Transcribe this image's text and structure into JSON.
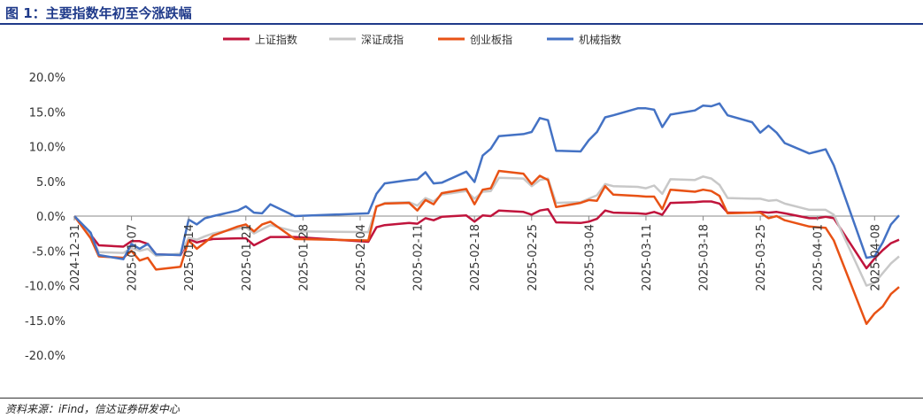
{
  "title": "图 1：主要指数年初至今涨跌幅",
  "source": "资料来源：iFind，信达证券研发中心",
  "chart_data": {
    "type": "line",
    "title": "图 1：主要指数年初至今涨跌幅",
    "xlabel": "",
    "ylabel": "",
    "ylim": [
      -20,
      20
    ],
    "yticks": [
      -20,
      -15,
      -10,
      -5,
      0,
      5,
      10,
      15,
      20
    ],
    "ytick_labels": [
      "-20.0%",
      "-15.0%",
      "-10.0%",
      "-5.0%",
      "0.0%",
      "5.0%",
      "10.0%",
      "15.0%",
      "20.0%"
    ],
    "x_start": "2024-12-31",
    "x_end": "2025-04-11",
    "xtick_labels": [
      "2024-12-31",
      "2025-01-07",
      "2025-01-14",
      "2025-01-21",
      "2025-01-28",
      "2025-02-04",
      "2025-02-11",
      "2025-02-18",
      "2025-02-25",
      "2025-03-04",
      "2025-03-11",
      "2025-03-18",
      "2025-03-25",
      "2025-04-01",
      "2025-04-08"
    ],
    "legend_position": "top",
    "grid": false,
    "series": [
      {
        "name": "上证指数",
        "color": "#c0143c",
        "points": [
          [
            "2024-12-31",
            0
          ],
          [
            "2025-01-02",
            -2.7
          ],
          [
            "2025-01-03",
            -4.2
          ],
          [
            "2025-01-06",
            -4.4
          ],
          [
            "2025-01-07",
            -3.6
          ],
          [
            "2025-01-08",
            -3.6
          ],
          [
            "2025-01-09",
            -4.0
          ],
          [
            "2025-01-10",
            -5.5
          ],
          [
            "2025-01-13",
            -5.6
          ],
          [
            "2025-01-14",
            -3.3
          ],
          [
            "2025-01-15",
            -3.8
          ],
          [
            "2025-01-16",
            -3.5
          ],
          [
            "2025-01-17",
            -3.3
          ],
          [
            "2025-01-20",
            -3.2
          ],
          [
            "2025-01-21",
            -3.2
          ],
          [
            "2025-01-22",
            -4.2
          ],
          [
            "2025-01-23",
            -3.6
          ],
          [
            "2025-01-24",
            -3.0
          ],
          [
            "2025-01-27",
            -3.0
          ],
          [
            "2025-02-05",
            -3.7
          ],
          [
            "2025-02-06",
            -1.6
          ],
          [
            "2025-02-07",
            -1.3
          ],
          [
            "2025-02-10",
            -1.0
          ],
          [
            "2025-02-11",
            -1.1
          ],
          [
            "2025-02-12",
            -0.3
          ],
          [
            "2025-02-13",
            -0.6
          ],
          [
            "2025-02-14",
            -0.1
          ],
          [
            "2025-02-17",
            0.1
          ],
          [
            "2025-02-18",
            -0.8
          ],
          [
            "2025-02-19",
            0.1
          ],
          [
            "2025-02-20",
            0.0
          ],
          [
            "2025-02-21",
            0.8
          ],
          [
            "2025-02-24",
            0.6
          ],
          [
            "2025-02-25",
            0.2
          ],
          [
            "2025-02-26",
            0.8
          ],
          [
            "2025-02-27",
            1.0
          ],
          [
            "2025-02-28",
            -0.9
          ],
          [
            "2025-03-03",
            -1.0
          ],
          [
            "2025-03-04",
            -0.8
          ],
          [
            "2025-03-05",
            -0.4
          ],
          [
            "2025-03-06",
            0.8
          ],
          [
            "2025-03-07",
            0.5
          ],
          [
            "2025-03-10",
            0.4
          ],
          [
            "2025-03-11",
            0.3
          ],
          [
            "2025-03-12",
            0.6
          ],
          [
            "2025-03-13",
            0.2
          ],
          [
            "2025-03-14",
            1.9
          ],
          [
            "2025-03-17",
            2.0
          ],
          [
            "2025-03-18",
            2.1
          ],
          [
            "2025-03-19",
            2.1
          ],
          [
            "2025-03-20",
            1.8
          ],
          [
            "2025-03-21",
            0.5
          ],
          [
            "2025-03-24",
            0.5
          ],
          [
            "2025-03-25",
            0.6
          ],
          [
            "2025-03-26",
            0.5
          ],
          [
            "2025-03-27",
            0.6
          ],
          [
            "2025-03-28",
            0.4
          ],
          [
            "2025-03-31",
            -0.3
          ],
          [
            "2025-04-01",
            -0.3
          ],
          [
            "2025-04-02",
            -0.1
          ],
          [
            "2025-04-03",
            -0.3
          ],
          [
            "2025-04-07",
            -7.5
          ],
          [
            "2025-04-08",
            -6.1
          ],
          [
            "2025-04-09",
            -4.9
          ],
          [
            "2025-04-10",
            -3.9
          ],
          [
            "2025-04-11",
            -3.4
          ]
        ]
      },
      {
        "name": "深证成指",
        "color": "#c8c8c8",
        "points": [
          [
            "2024-12-31",
            0
          ],
          [
            "2025-01-02",
            -2.9
          ],
          [
            "2025-01-03",
            -5.2
          ],
          [
            "2025-01-06",
            -5.3
          ],
          [
            "2025-01-07",
            -4.6
          ],
          [
            "2025-01-08",
            -5.0
          ],
          [
            "2025-01-09",
            -4.7
          ],
          [
            "2025-01-10",
            -5.7
          ],
          [
            "2025-01-13",
            -5.4
          ],
          [
            "2025-01-14",
            -3.1
          ],
          [
            "2025-01-15",
            -3.4
          ],
          [
            "2025-01-16",
            -2.9
          ],
          [
            "2025-01-17",
            -2.5
          ],
          [
            "2025-01-20",
            -1.8
          ],
          [
            "2025-01-21",
            -1.6
          ],
          [
            "2025-01-22",
            -2.5
          ],
          [
            "2025-01-23",
            -1.9
          ],
          [
            "2025-01-24",
            -1.3
          ],
          [
            "2025-01-27",
            -2.2
          ],
          [
            "2025-02-05",
            -2.3
          ],
          [
            "2025-02-06",
            1.3
          ],
          [
            "2025-02-07",
            1.9
          ],
          [
            "2025-02-10",
            2.0
          ],
          [
            "2025-02-11",
            1.5
          ],
          [
            "2025-02-12",
            2.6
          ],
          [
            "2025-02-13",
            2.1
          ],
          [
            "2025-02-14",
            3.1
          ],
          [
            "2025-02-17",
            3.6
          ],
          [
            "2025-02-18",
            2.5
          ],
          [
            "2025-02-19",
            3.5
          ],
          [
            "2025-02-20",
            3.6
          ],
          [
            "2025-02-21",
            5.5
          ],
          [
            "2025-02-24",
            5.4
          ],
          [
            "2025-02-25",
            4.3
          ],
          [
            "2025-02-26",
            5.2
          ],
          [
            "2025-02-27",
            5.4
          ],
          [
            "2025-02-28",
            1.9
          ],
          [
            "2025-03-03",
            2.0
          ],
          [
            "2025-03-04",
            2.5
          ],
          [
            "2025-03-05",
            3.0
          ],
          [
            "2025-03-06",
            4.6
          ],
          [
            "2025-03-07",
            4.3
          ],
          [
            "2025-03-10",
            4.2
          ],
          [
            "2025-03-11",
            4.0
          ],
          [
            "2025-03-12",
            4.4
          ],
          [
            "2025-03-13",
            3.2
          ],
          [
            "2025-03-14",
            5.3
          ],
          [
            "2025-03-17",
            5.2
          ],
          [
            "2025-03-18",
            5.7
          ],
          [
            "2025-03-19",
            5.4
          ],
          [
            "2025-03-20",
            4.5
          ],
          [
            "2025-03-21",
            2.6
          ],
          [
            "2025-03-24",
            2.5
          ],
          [
            "2025-03-25",
            2.5
          ],
          [
            "2025-03-26",
            2.2
          ],
          [
            "2025-03-27",
            2.3
          ],
          [
            "2025-03-28",
            1.8
          ],
          [
            "2025-03-31",
            0.9
          ],
          [
            "2025-04-01",
            0.9
          ],
          [
            "2025-04-02",
            0.9
          ],
          [
            "2025-04-03",
            0.2
          ],
          [
            "2025-04-07",
            -10.0
          ],
          [
            "2025-04-08",
            -9.6
          ],
          [
            "2025-04-09",
            -8.2
          ],
          [
            "2025-04-10",
            -6.8
          ],
          [
            "2025-04-11",
            -5.8
          ]
        ]
      },
      {
        "name": "创业板指",
        "color": "#e85215",
        "points": [
          [
            "2024-12-31",
            0
          ],
          [
            "2025-01-02",
            -3.2
          ],
          [
            "2025-01-03",
            -5.8
          ],
          [
            "2025-01-06",
            -6.0
          ],
          [
            "2025-01-07",
            -5.0
          ],
          [
            "2025-01-08",
            -6.4
          ],
          [
            "2025-01-09",
            -6.0
          ],
          [
            "2025-01-10",
            -7.7
          ],
          [
            "2025-01-13",
            -7.3
          ],
          [
            "2025-01-14",
            -3.5
          ],
          [
            "2025-01-15",
            -4.7
          ],
          [
            "2025-01-16",
            -3.8
          ],
          [
            "2025-01-17",
            -2.8
          ],
          [
            "2025-01-20",
            -1.5
          ],
          [
            "2025-01-21",
            -1.2
          ],
          [
            "2025-01-22",
            -2.2
          ],
          [
            "2025-01-23",
            -1.2
          ],
          [
            "2025-01-24",
            -0.8
          ],
          [
            "2025-01-27",
            -3.3
          ],
          [
            "2025-02-05",
            -3.5
          ],
          [
            "2025-02-06",
            1.4
          ],
          [
            "2025-02-07",
            1.8
          ],
          [
            "2025-02-10",
            1.9
          ],
          [
            "2025-02-11",
            0.8
          ],
          [
            "2025-02-12",
            2.3
          ],
          [
            "2025-02-13",
            1.7
          ],
          [
            "2025-02-14",
            3.3
          ],
          [
            "2025-02-17",
            3.9
          ],
          [
            "2025-02-18",
            1.7
          ],
          [
            "2025-02-19",
            3.8
          ],
          [
            "2025-02-20",
            4.0
          ],
          [
            "2025-02-21",
            6.5
          ],
          [
            "2025-02-24",
            6.1
          ],
          [
            "2025-02-25",
            4.6
          ],
          [
            "2025-02-26",
            5.8
          ],
          [
            "2025-02-27",
            5.2
          ],
          [
            "2025-02-28",
            1.3
          ],
          [
            "2025-03-03",
            1.9
          ],
          [
            "2025-03-04",
            2.3
          ],
          [
            "2025-03-05",
            2.2
          ],
          [
            "2025-03-06",
            4.3
          ],
          [
            "2025-03-07",
            3.1
          ],
          [
            "2025-03-10",
            2.9
          ],
          [
            "2025-03-11",
            2.8
          ],
          [
            "2025-03-12",
            2.8
          ],
          [
            "2025-03-13",
            1.0
          ],
          [
            "2025-03-14",
            3.8
          ],
          [
            "2025-03-17",
            3.5
          ],
          [
            "2025-03-18",
            3.8
          ],
          [
            "2025-03-19",
            3.6
          ],
          [
            "2025-03-20",
            2.9
          ],
          [
            "2025-03-21",
            0.4
          ],
          [
            "2025-03-24",
            0.5
          ],
          [
            "2025-03-25",
            0.5
          ],
          [
            "2025-03-26",
            -0.3
          ],
          [
            "2025-03-27",
            0.0
          ],
          [
            "2025-03-28",
            -0.6
          ],
          [
            "2025-03-31",
            -1.5
          ],
          [
            "2025-04-01",
            -1.6
          ],
          [
            "2025-04-02",
            -1.7
          ],
          [
            "2025-04-03",
            -3.5
          ],
          [
            "2025-04-07",
            -15.5
          ],
          [
            "2025-04-08",
            -14.0
          ],
          [
            "2025-04-09",
            -13.0
          ],
          [
            "2025-04-10",
            -11.2
          ],
          [
            "2025-04-11",
            -10.2
          ]
        ]
      },
      {
        "name": "机械指数",
        "color": "#4472c4",
        "points": [
          [
            "2024-12-31",
            0
          ],
          [
            "2025-01-02",
            -2.4
          ],
          [
            "2025-01-03",
            -5.6
          ],
          [
            "2025-01-06",
            -6.2
          ],
          [
            "2025-01-07",
            -4.0
          ],
          [
            "2025-01-08",
            -4.7
          ],
          [
            "2025-01-09",
            -4.0
          ],
          [
            "2025-01-10",
            -5.5
          ],
          [
            "2025-01-13",
            -5.6
          ],
          [
            "2025-01-14",
            -0.5
          ],
          [
            "2025-01-15",
            -1.2
          ],
          [
            "2025-01-16",
            -0.3
          ],
          [
            "2025-01-17",
            0.0
          ],
          [
            "2025-01-20",
            0.8
          ],
          [
            "2025-01-21",
            1.4
          ],
          [
            "2025-01-22",
            0.5
          ],
          [
            "2025-01-23",
            0.4
          ],
          [
            "2025-01-24",
            1.7
          ],
          [
            "2025-01-27",
            0.0
          ],
          [
            "2025-02-05",
            0.4
          ],
          [
            "2025-02-06",
            3.2
          ],
          [
            "2025-02-07",
            4.7
          ],
          [
            "2025-02-10",
            5.2
          ],
          [
            "2025-02-11",
            5.3
          ],
          [
            "2025-02-12",
            6.3
          ],
          [
            "2025-02-13",
            4.7
          ],
          [
            "2025-02-14",
            4.8
          ],
          [
            "2025-02-17",
            6.4
          ],
          [
            "2025-02-18",
            4.9
          ],
          [
            "2025-02-19",
            8.7
          ],
          [
            "2025-02-20",
            9.7
          ],
          [
            "2025-02-21",
            11.5
          ],
          [
            "2025-02-24",
            11.8
          ],
          [
            "2025-02-25",
            12.1
          ],
          [
            "2025-02-26",
            14.1
          ],
          [
            "2025-02-27",
            13.8
          ],
          [
            "2025-02-28",
            9.4
          ],
          [
            "2025-03-03",
            9.3
          ],
          [
            "2025-03-04",
            10.9
          ],
          [
            "2025-03-05",
            12.1
          ],
          [
            "2025-03-06",
            14.2
          ],
          [
            "2025-03-07",
            14.5
          ],
          [
            "2025-03-10",
            15.5
          ],
          [
            "2025-03-11",
            15.5
          ],
          [
            "2025-03-12",
            15.3
          ],
          [
            "2025-03-13",
            12.8
          ],
          [
            "2025-03-14",
            14.6
          ],
          [
            "2025-03-17",
            15.2
          ],
          [
            "2025-03-18",
            15.9
          ],
          [
            "2025-03-19",
            15.8
          ],
          [
            "2025-03-20",
            16.2
          ],
          [
            "2025-03-21",
            14.5
          ],
          [
            "2025-03-24",
            13.5
          ],
          [
            "2025-03-25",
            12.0
          ],
          [
            "2025-03-26",
            13.0
          ],
          [
            "2025-03-27",
            12.0
          ],
          [
            "2025-03-28",
            10.5
          ],
          [
            "2025-03-31",
            9.0
          ],
          [
            "2025-04-01",
            9.3
          ],
          [
            "2025-04-02",
            9.6
          ],
          [
            "2025-04-03",
            7.3
          ],
          [
            "2025-04-07",
            -6.0
          ],
          [
            "2025-04-08",
            -5.8
          ],
          [
            "2025-04-09",
            -3.8
          ],
          [
            "2025-04-10",
            -1.2
          ],
          [
            "2025-04-11",
            0.1
          ]
        ]
      }
    ]
  }
}
